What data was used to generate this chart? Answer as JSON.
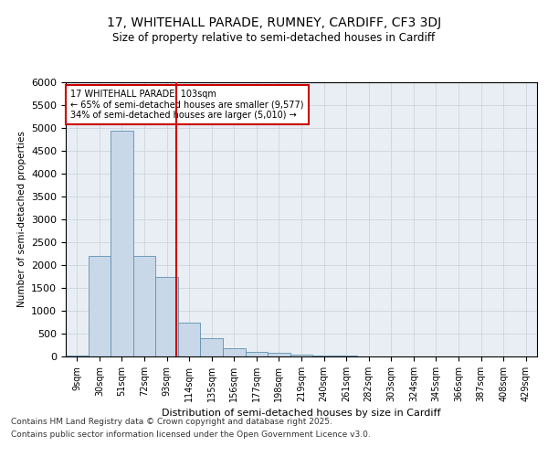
{
  "title": "17, WHITEHALL PARADE, RUMNEY, CARDIFF, CF3 3DJ",
  "subtitle": "Size of property relative to semi-detached houses in Cardiff",
  "xlabel": "Distribution of semi-detached houses by size in Cardiff",
  "ylabel": "Number of semi-detached properties",
  "bar_labels": [
    "9sqm",
    "30sqm",
    "51sqm",
    "72sqm",
    "93sqm",
    "114sqm",
    "135sqm",
    "156sqm",
    "177sqm",
    "198sqm",
    "219sqm",
    "240sqm",
    "261sqm",
    "282sqm",
    "303sqm",
    "324sqm",
    "345sqm",
    "366sqm",
    "387sqm",
    "408sqm",
    "429sqm"
  ],
  "bar_values": [
    30,
    2200,
    4950,
    2200,
    1750,
    750,
    400,
    190,
    100,
    80,
    50,
    30,
    15,
    8,
    5,
    3,
    2,
    1,
    1,
    1,
    1
  ],
  "bar_color": "#c8d8e8",
  "bar_edgecolor": "#6090b0",
  "vline_color": "#cc0000",
  "vline_position": 4.42,
  "annotation_title": "17 WHITEHALL PARADE: 103sqm",
  "annotation_line1": "← 65% of semi-detached houses are smaller (9,577)",
  "annotation_line2": "34% of semi-detached houses are larger (5,010) →",
  "annotation_box_facecolor": "#ffffff",
  "annotation_box_edgecolor": "#cc0000",
  "ylim": [
    0,
    6000
  ],
  "yticks": [
    0,
    500,
    1000,
    1500,
    2000,
    2500,
    3000,
    3500,
    4000,
    4500,
    5000,
    5500,
    6000
  ],
  "grid_color": "#c8d0d8",
  "background_color": "#e8eef4",
  "footer_line1": "Contains HM Land Registry data © Crown copyright and database right 2025.",
  "footer_line2": "Contains public sector information licensed under the Open Government Licence v3.0."
}
